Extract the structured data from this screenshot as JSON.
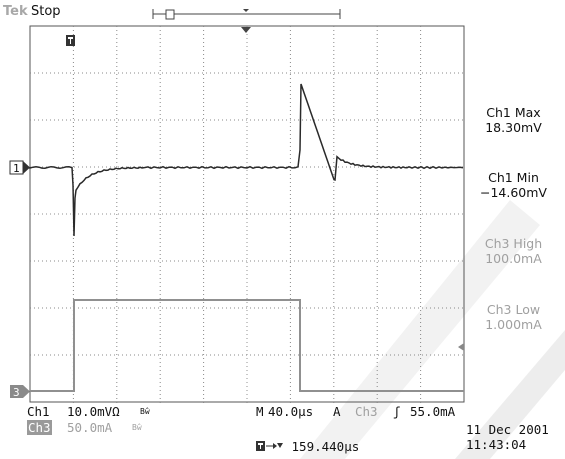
{
  "header": {
    "brand": "Tek",
    "status": "Stop"
  },
  "channels": {
    "ch1_marker": "1",
    "ch3_marker": "3",
    "ch1_label": "Ch1",
    "ch1_scale": "10.0mVΩ",
    "ch1_bw": "Bŵ",
    "ch3_label": "Ch3",
    "ch3_scale": "50.0mA",
    "ch3_bw": "Bŵ"
  },
  "measurements": [
    {
      "name": "Ch1 Max",
      "value": "18.30mV"
    },
    {
      "name": "Ch1 Min",
      "value": "−14.60mV"
    },
    {
      "name": "Ch3 High",
      "value": "100.0mA"
    },
    {
      "name": "Ch3 Low",
      "value": "1.000mA"
    }
  ],
  "timebase": {
    "m_label": "M",
    "horizontal": "40.0µs",
    "trigger_mode": "A",
    "trigger_source": "Ch3",
    "trigger_slope": "ʃ",
    "trigger_level": "55.0mA",
    "trigger_delay": "159.440µs"
  },
  "timestamp": {
    "date": "11 Dec  2001",
    "time": "11:43:04"
  },
  "watermark": "ams",
  "colors": {
    "ch1": "#2a2a2a",
    "ch3": "#909090",
    "grid": "#808080",
    "watermark": "#e5e5e5"
  }
}
